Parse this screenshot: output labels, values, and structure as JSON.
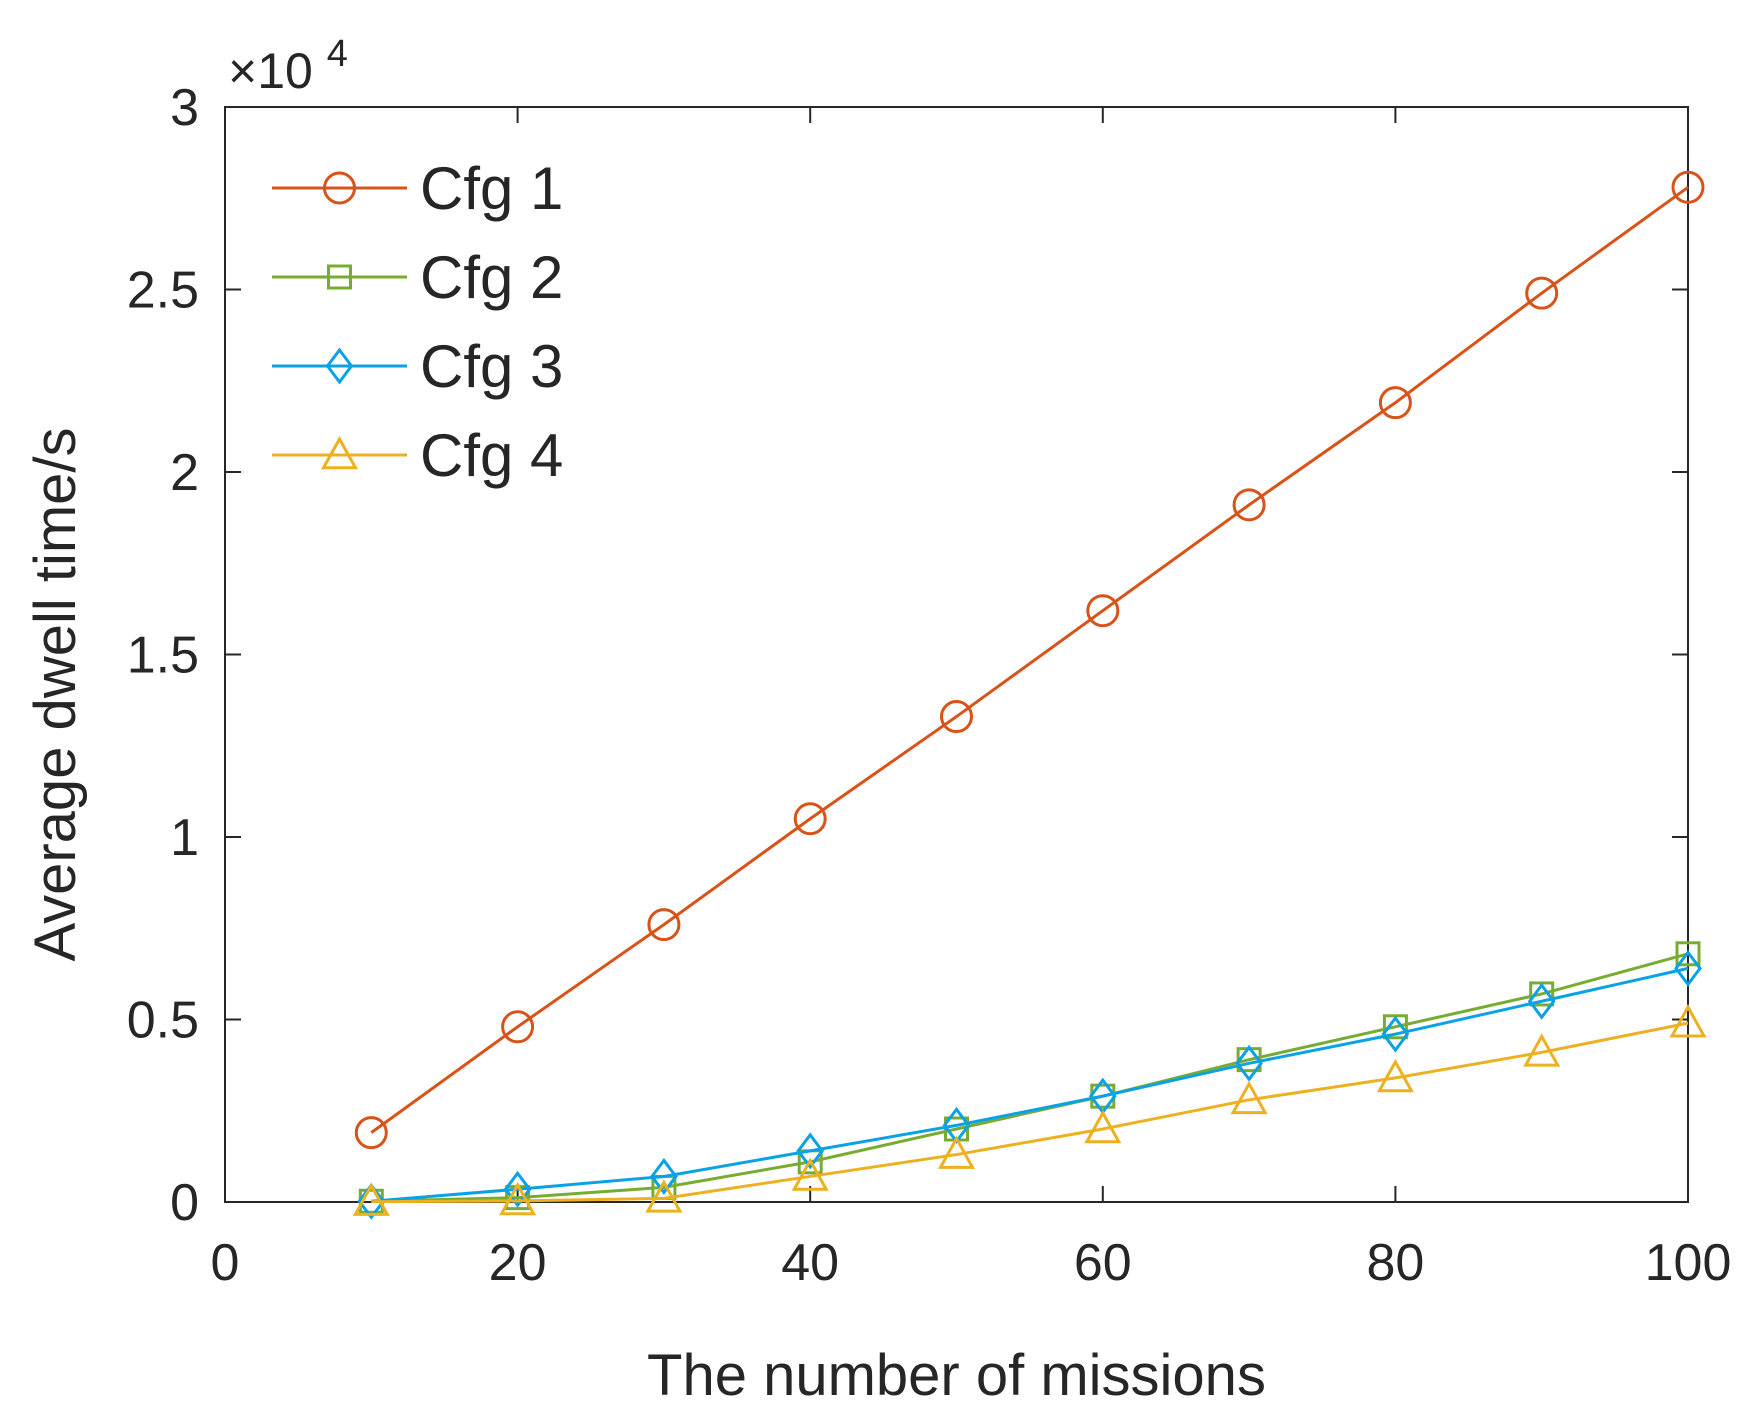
{
  "chart_data": {
    "type": "line",
    "title": "",
    "xlabel": "The number of missions",
    "ylabel": "Average dwell time/s",
    "xlim": [
      0,
      100
    ],
    "ylim": [
      0,
      30000
    ],
    "x_ticks": [
      0,
      20,
      40,
      60,
      80,
      100
    ],
    "x_tick_labels": [
      "0",
      "20",
      "40",
      "60",
      "80",
      "100"
    ],
    "y_ticks": [
      0,
      5000,
      10000,
      15000,
      20000,
      25000,
      30000
    ],
    "y_tick_labels": [
      "0",
      "0.5",
      "1",
      "1.5",
      "2",
      "2.5",
      "3"
    ],
    "y_exponent_label": "×10",
    "y_exponent_power": "4",
    "legend_position": "top-left",
    "x": [
      10,
      20,
      30,
      40,
      50,
      60,
      70,
      80,
      90,
      100
    ],
    "series": [
      {
        "name": "Cfg 1",
        "color": "#d95319",
        "marker": "circle",
        "values": [
          1900,
          4800,
          7600,
          10500,
          13300,
          16200,
          19100,
          21900,
          24900,
          27800
        ]
      },
      {
        "name": "Cfg 2",
        "color": "#77ac30",
        "marker": "square",
        "values": [
          20,
          120,
          400,
          1100,
          2000,
          2900,
          3900,
          4800,
          5700,
          6800
        ]
      },
      {
        "name": "Cfg 3",
        "color": "#0aa2e6",
        "marker": "diamond",
        "values": [
          20,
          350,
          700,
          1400,
          2100,
          2900,
          3800,
          4600,
          5500,
          6400
        ]
      },
      {
        "name": "Cfg 4",
        "color": "#edb120",
        "marker": "triangle",
        "values": [
          10,
          30,
          100,
          700,
          1300,
          2000,
          2800,
          3400,
          4100,
          4900
        ]
      }
    ]
  }
}
